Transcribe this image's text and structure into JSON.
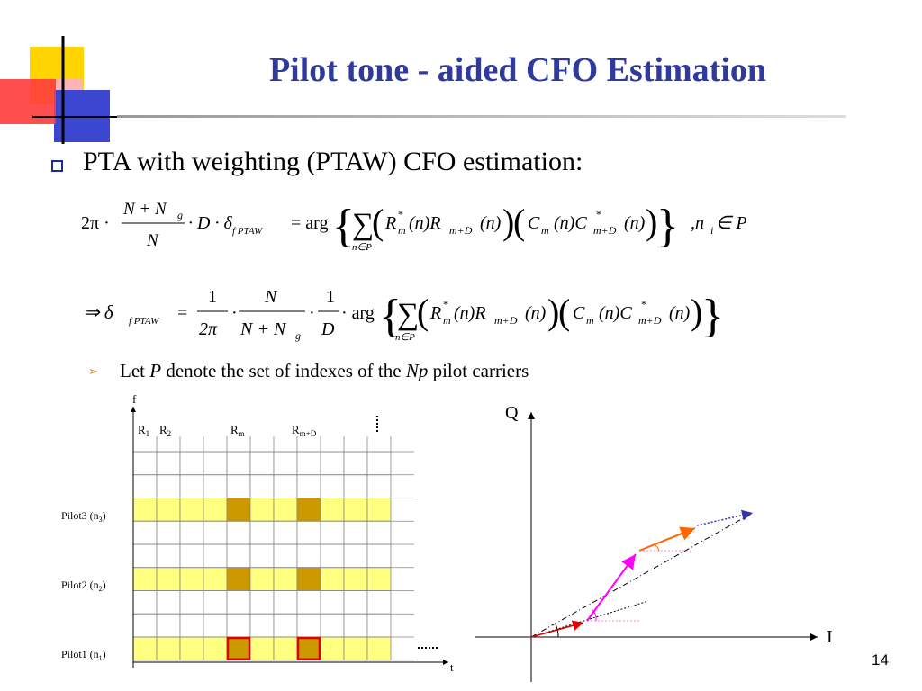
{
  "slide": {
    "title": "Pilot tone - aided CFO Estimation",
    "bullet": "PTA with weighting (PTAW) CFO estimation:",
    "sub_bullet_parts": [
      "Let ",
      "P",
      " denote the set of indexes of the ",
      "Np",
      " pilot carriers"
    ],
    "page_number": "14"
  },
  "colors": {
    "title": "#2f3a9e",
    "pilot_cell": "#ffff80",
    "highlight_cell": "#cc9900",
    "cell_border_red": "#e00000",
    "arrow_red": "#e00000",
    "arrow_magenta": "#ff00ff",
    "arrow_orange": "#ff6600",
    "arrow_blue_dotted": "#3333aa"
  },
  "equation1": {
    "lhs_factor": "2π ·",
    "frac1_num": "N + N",
    "frac1_num_sub": "g",
    "frac1_den": "N",
    "dot_D_delta": "· D · δ",
    "delta_sub": "f PTAW",
    "eq_arg": "= arg",
    "sum_sub": "n∈P",
    "term1": "R",
    "term1_sup": "*",
    "term1_sub": "m",
    "n1": "(n)R",
    "n1_sub": "m+D",
    "n2": "(n)",
    "term2": "C",
    "term2_sub": "m",
    "n3": "(n)C",
    "n3_sup": "*",
    "n3_sub": "m+D",
    "n4": "(n)",
    "condition": ",n",
    "condition_sub": "i",
    "condition_tail": " ∈ P"
  },
  "equation2": {
    "arrow": "⇒ δ",
    "delta_sub": "f PTAW",
    "eq": "=",
    "frac_a_num": "1",
    "frac_a_den": "2π",
    "frac_b_num": "N",
    "frac_b_den": "N + N",
    "frac_b_den_sub": "g",
    "frac_c_num": "1",
    "frac_c_den": "D",
    "arg": "· arg"
  },
  "grid_diagram": {
    "axis_f": "f",
    "axis_t": "t",
    "col_labels": [
      {
        "text": "R",
        "sub": "1"
      },
      {
        "text": "R",
        "sub": "2"
      },
      {
        "text": "R",
        "sub": "m"
      },
      {
        "text": "R",
        "sub": "m+D"
      }
    ],
    "pilot_labels": [
      {
        "text": "Pilot3 (n",
        "sub": "3",
        "tail": ")"
      },
      {
        "text": "Pilot2 (n",
        "sub": "2",
        "tail": ")"
      },
      {
        "text": "Pilot1 (n",
        "sub": "1",
        "tail": ")"
      }
    ]
  },
  "iq_diagram": {
    "axis_q": "Q",
    "axis_i": "I"
  }
}
